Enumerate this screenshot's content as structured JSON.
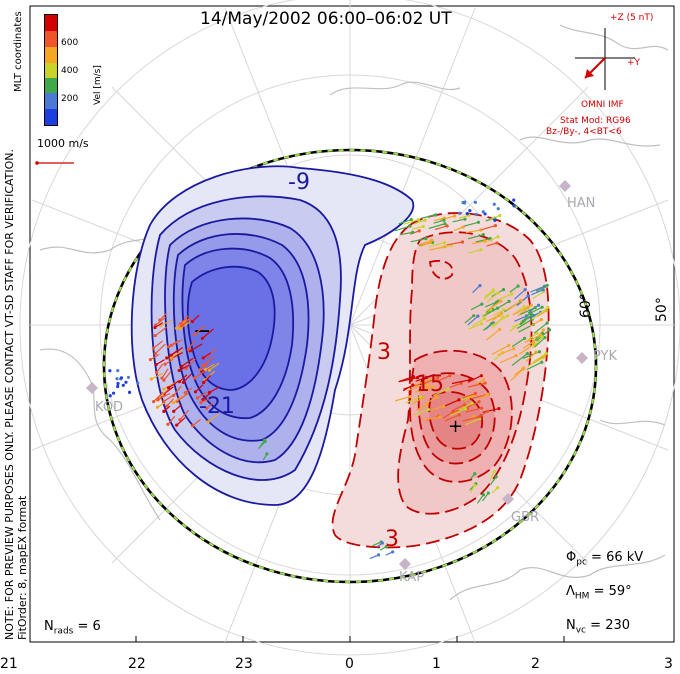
{
  "title": "14/May/2002 06:00–06:02 UT",
  "side_note": {
    "line1": "NOTE: FOR PREVIEW PURPOSES ONLY. PLEASE CONTACT VT-SD STAFF FOR VERIFICATION.",
    "line2": "FitOrder: 8, mapEX format"
  },
  "coords_label": "MLT coordinates",
  "colorbar": {
    "label": "Vel [m/s]",
    "ticks": [
      "600",
      "400",
      "200"
    ],
    "colors": [
      "#d40000",
      "#f0542a",
      "#f5a623",
      "#c8d42a",
      "#3fa84a",
      "#4a7ad6",
      "#1d3fe0"
    ]
  },
  "speed_ref": "1000 m/s",
  "imf": {
    "z_label": "+Z (5 nT)",
    "y_label": "+Y",
    "title": "OMNI IMF",
    "stat_mod": "Stat Mod: RG96",
    "condition": "Bz-/By-, 4<BT<6"
  },
  "stats": {
    "phi_pc": "66 kV",
    "lambda_hm": "59°",
    "n_vc": "230",
    "n_rads": "6"
  },
  "mlt_ticks": [
    "21",
    "22",
    "23",
    "0",
    "1",
    "2",
    "3"
  ],
  "lat_labels": [
    "60°",
    "50°"
  ],
  "stations": [
    "HAN",
    "PYK",
    "KOD",
    "GBR",
    "KAP"
  ],
  "contour_labels": {
    "blue_top": "-9",
    "blue_bottom": "-21",
    "red_upper": "3",
    "red_mid": "15",
    "red_low": "3"
  },
  "markers": {
    "min": "−",
    "max": "+"
  },
  "colors": {
    "blue": "#1a1aa0",
    "red": "#c00000",
    "accent_red": "#d00000"
  }
}
